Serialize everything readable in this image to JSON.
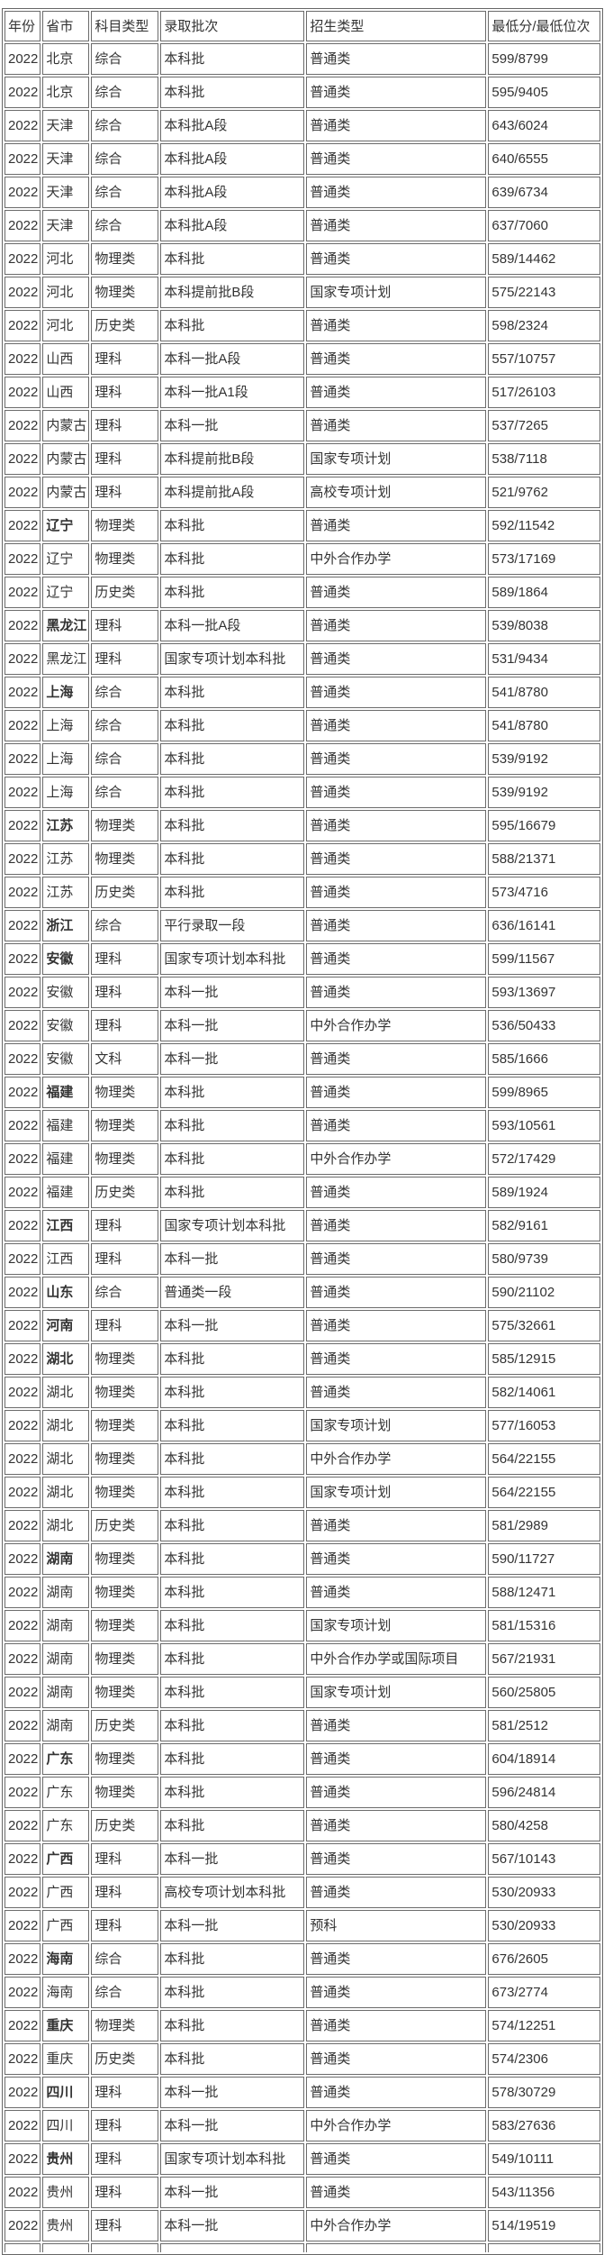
{
  "page": {
    "background": "#ffffff"
  },
  "colors": {
    "text": "#333333",
    "inner_border": "#6b6b6b",
    "outer_border": "#666666",
    "row_background": "#ffffff"
  },
  "table": {
    "columns": [
      "年份",
      "省市",
      "科目类型",
      "录取批次",
      "招生类型",
      "最低分/最低位次"
    ],
    "col_keys": [
      "year",
      "province",
      "subject-type",
      "admission-batch",
      "enrollment-type",
      "min-score-rank"
    ],
    "bold_province_row_indices": [
      14,
      17,
      19,
      23,
      26,
      27,
      31,
      35,
      37,
      38,
      39,
      45,
      51,
      54,
      57,
      59,
      61,
      63
    ],
    "rows": [
      [
        "2022",
        "北京",
        "综合",
        "本科批",
        "普通类",
        "599/8799"
      ],
      [
        "2022",
        "北京",
        "综合",
        "本科批",
        "普通类",
        "595/9405"
      ],
      [
        "2022",
        "天津",
        "综合",
        "本科批A段",
        "普通类",
        "643/6024"
      ],
      [
        "2022",
        "天津",
        "综合",
        "本科批A段",
        "普通类",
        "640/6555"
      ],
      [
        "2022",
        "天津",
        "综合",
        "本科批A段",
        "普通类",
        "639/6734"
      ],
      [
        "2022",
        "天津",
        "综合",
        "本科批A段",
        "普通类",
        "637/7060"
      ],
      [
        "2022",
        "河北",
        "物理类",
        "本科批",
        "普通类",
        "589/14462"
      ],
      [
        "2022",
        "河北",
        "物理类",
        "本科提前批B段",
        "国家专项计划",
        "575/22143"
      ],
      [
        "2022",
        "河北",
        "历史类",
        "本科批",
        "普通类",
        "598/2324"
      ],
      [
        "2022",
        "山西",
        "理科",
        "本科一批A段",
        "普通类",
        "557/10757"
      ],
      [
        "2022",
        "山西",
        "理科",
        "本科一批A1段",
        "普通类",
        "517/26103"
      ],
      [
        "2022",
        "内蒙古",
        "理科",
        "本科一批",
        "普通类",
        "537/7265"
      ],
      [
        "2022",
        "内蒙古",
        "理科",
        "本科提前批B段",
        "国家专项计划",
        "538/7118"
      ],
      [
        "2022",
        "内蒙古",
        "理科",
        "本科提前批A段",
        "高校专项计划",
        "521/9762"
      ],
      [
        "2022",
        "辽宁",
        "物理类",
        "本科批",
        "普通类",
        "592/11542"
      ],
      [
        "2022",
        "辽宁",
        "物理类",
        "本科批",
        "中外合作办学",
        "573/17169"
      ],
      [
        "2022",
        "辽宁",
        "历史类",
        "本科批",
        "普通类",
        "589/1864"
      ],
      [
        "2022",
        "黑龙江",
        "理科",
        "本科一批A段",
        "普通类",
        "539/8038"
      ],
      [
        "2022",
        "黑龙江",
        "理科",
        "国家专项计划本科批",
        "普通类",
        "531/9434"
      ],
      [
        "2022",
        "上海",
        "综合",
        "本科批",
        "普通类",
        "541/8780"
      ],
      [
        "2022",
        "上海",
        "综合",
        "本科批",
        "普通类",
        "541/8780"
      ],
      [
        "2022",
        "上海",
        "综合",
        "本科批",
        "普通类",
        "539/9192"
      ],
      [
        "2022",
        "上海",
        "综合",
        "本科批",
        "普通类",
        "539/9192"
      ],
      [
        "2022",
        "江苏",
        "物理类",
        "本科批",
        "普通类",
        "595/16679"
      ],
      [
        "2022",
        "江苏",
        "物理类",
        "本科批",
        "普通类",
        "588/21371"
      ],
      [
        "2022",
        "江苏",
        "历史类",
        "本科批",
        "普通类",
        "573/4716"
      ],
      [
        "2022",
        "浙江",
        "综合",
        "平行录取一段",
        "普通类",
        "636/16141"
      ],
      [
        "2022",
        "安徽",
        "理科",
        "国家专项计划本科批",
        "普通类",
        "599/11567"
      ],
      [
        "2022",
        "安徽",
        "理科",
        "本科一批",
        "普通类",
        "593/13697"
      ],
      [
        "2022",
        "安徽",
        "理科",
        "本科一批",
        "中外合作办学",
        "536/50433"
      ],
      [
        "2022",
        "安徽",
        "文科",
        "本科一批",
        "普通类",
        "585/1666"
      ],
      [
        "2022",
        "福建",
        "物理类",
        "本科批",
        "普通类",
        "599/8965"
      ],
      [
        "2022",
        "福建",
        "物理类",
        "本科批",
        "普通类",
        "593/10561"
      ],
      [
        "2022",
        "福建",
        "物理类",
        "本科批",
        "中外合作办学",
        "572/17429"
      ],
      [
        "2022",
        "福建",
        "历史类",
        "本科批",
        "普通类",
        "589/1924"
      ],
      [
        "2022",
        "江西",
        "理科",
        "国家专项计划本科批",
        "普通类",
        "582/9161"
      ],
      [
        "2022",
        "江西",
        "理科",
        "本科一批",
        "普通类",
        "580/9739"
      ],
      [
        "2022",
        "山东",
        "综合",
        "普通类一段",
        "普通类",
        "590/21102"
      ],
      [
        "2022",
        "河南",
        "理科",
        "本科一批",
        "普通类",
        "575/32661"
      ],
      [
        "2022",
        "湖北",
        "物理类",
        "本科批",
        "普通类",
        "585/12915"
      ],
      [
        "2022",
        "湖北",
        "物理类",
        "本科批",
        "普通类",
        "582/14061"
      ],
      [
        "2022",
        "湖北",
        "物理类",
        "本科批",
        "国家专项计划",
        "577/16053"
      ],
      [
        "2022",
        "湖北",
        "物理类",
        "本科批",
        "中外合作办学",
        "564/22155"
      ],
      [
        "2022",
        "湖北",
        "物理类",
        "本科批",
        "国家专项计划",
        "564/22155"
      ],
      [
        "2022",
        "湖北",
        "历史类",
        "本科批",
        "普通类",
        "581/2989"
      ],
      [
        "2022",
        "湖南",
        "物理类",
        "本科批",
        "普通类",
        "590/11727"
      ],
      [
        "2022",
        "湖南",
        "物理类",
        "本科批",
        "普通类",
        "588/12471"
      ],
      [
        "2022",
        "湖南",
        "物理类",
        "本科批",
        "国家专项计划",
        "581/15316"
      ],
      [
        "2022",
        "湖南",
        "物理类",
        "本科批",
        "中外合作办学或国际项目",
        "567/21931"
      ],
      [
        "2022",
        "湖南",
        "物理类",
        "本科批",
        "国家专项计划",
        "560/25805"
      ],
      [
        "2022",
        "湖南",
        "历史类",
        "本科批",
        "普通类",
        "581/2512"
      ],
      [
        "2022",
        "广东",
        "物理类",
        "本科批",
        "普通类",
        "604/18914"
      ],
      [
        "2022",
        "广东",
        "物理类",
        "本科批",
        "普通类",
        "596/24814"
      ],
      [
        "2022",
        "广东",
        "历史类",
        "本科批",
        "普通类",
        "580/4258"
      ],
      [
        "2022",
        "广西",
        "理科",
        "本科一批",
        "普通类",
        "567/10143"
      ],
      [
        "2022",
        "广西",
        "理科",
        "高校专项计划本科批",
        "普通类",
        "530/20933"
      ],
      [
        "2022",
        "广西",
        "理科",
        "本科一批",
        "预科",
        "530/20933"
      ],
      [
        "2022",
        "海南",
        "综合",
        "本科批",
        "普通类",
        "676/2605"
      ],
      [
        "2022",
        "海南",
        "综合",
        "本科批",
        "普通类",
        "673/2774"
      ],
      [
        "2022",
        "重庆",
        "物理类",
        "本科批",
        "普通类",
        "574/12251"
      ],
      [
        "2022",
        "重庆",
        "历史类",
        "本科批",
        "普通类",
        "574/2306"
      ],
      [
        "2022",
        "四川",
        "理科",
        "本科一批",
        "普通类",
        "578/30729"
      ],
      [
        "2022",
        "四川",
        "理科",
        "本科一批",
        "中外合作办学",
        "583/27636"
      ],
      [
        "2022",
        "贵州",
        "理科",
        "国家专项计划本科批",
        "普通类",
        "549/10111"
      ],
      [
        "2022",
        "贵州",
        "理科",
        "本科一批",
        "普通类",
        "543/11356"
      ],
      [
        "2022",
        "贵州",
        "理科",
        "本科一批",
        "中外合作办学",
        "514/19519"
      ]
    ]
  }
}
